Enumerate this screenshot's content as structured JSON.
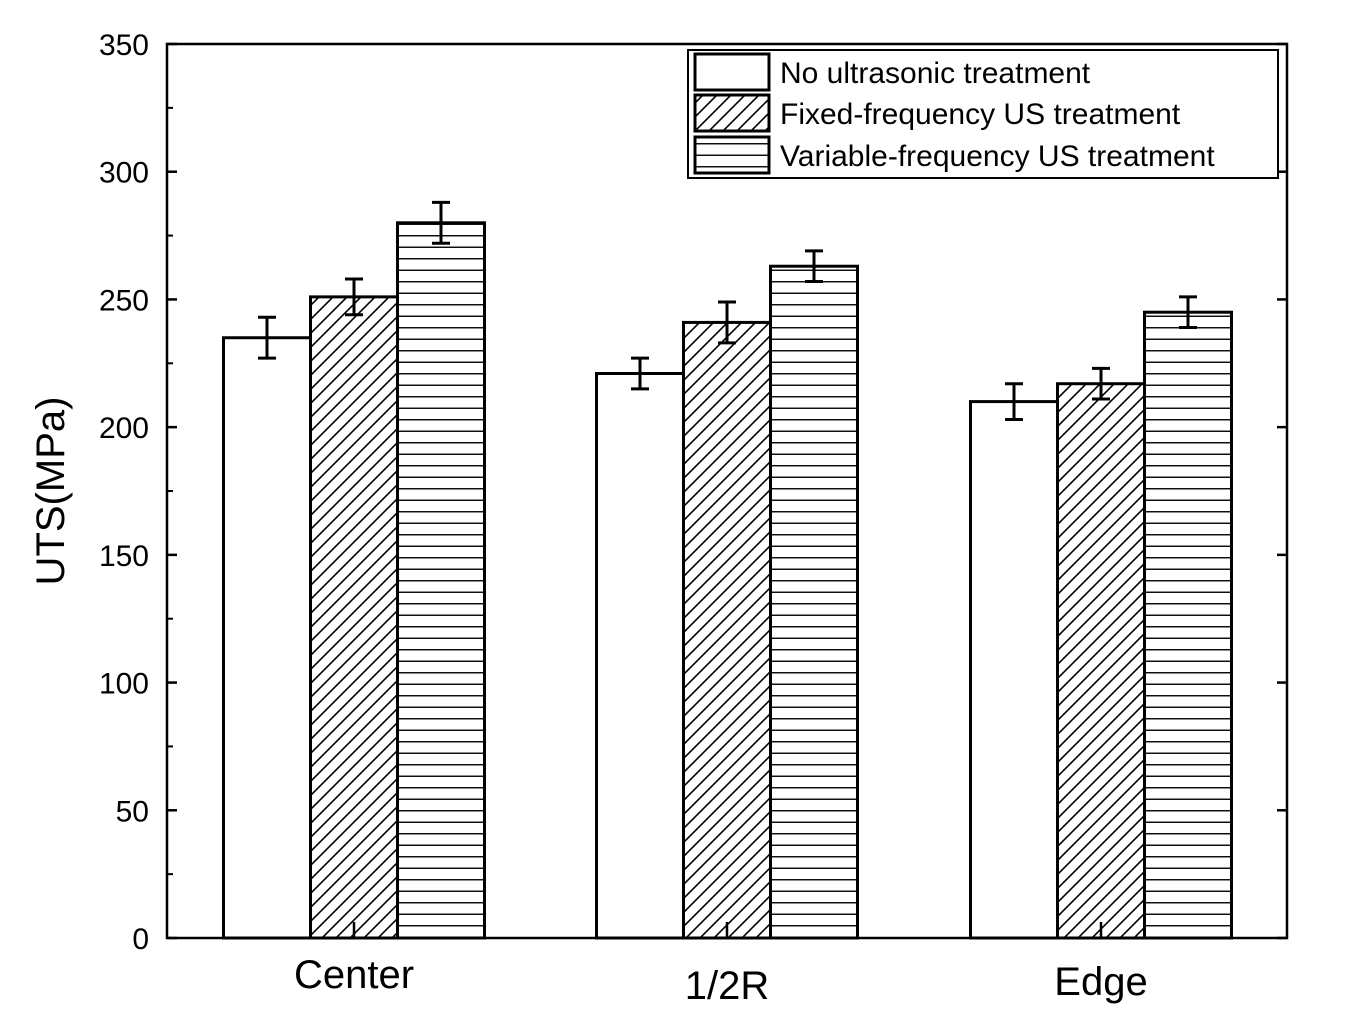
{
  "chart_data": {
    "type": "bar",
    "title": "",
    "xlabel": "",
    "ylabel": "UTS(MPa)",
    "ylim": [
      0,
      350
    ],
    "yticks": [
      0,
      50,
      100,
      150,
      200,
      250,
      300,
      350
    ],
    "ytick_labels": [
      "0",
      "50",
      "100",
      "150",
      "200",
      "250",
      "300",
      "350"
    ],
    "categories": [
      "Center",
      "1/2R",
      "Edge"
    ],
    "legend_position": "top-right",
    "series": [
      {
        "name": "No ultrasonic treatment",
        "pattern": "none",
        "values": [
          235,
          221,
          210
        ],
        "errors": [
          8,
          6,
          7
        ]
      },
      {
        "name": "Fixed-frequency US treatment",
        "pattern": "diagonal",
        "values": [
          251,
          241,
          217
        ],
        "errors": [
          7,
          8,
          6
        ]
      },
      {
        "name": "Variable-frequency US treatment",
        "pattern": "horizontal",
        "values": [
          280,
          263,
          245
        ],
        "errors": [
          8,
          6,
          6
        ]
      }
    ],
    "colors": {
      "stroke": "#000000",
      "fill": "#ffffff"
    }
  }
}
